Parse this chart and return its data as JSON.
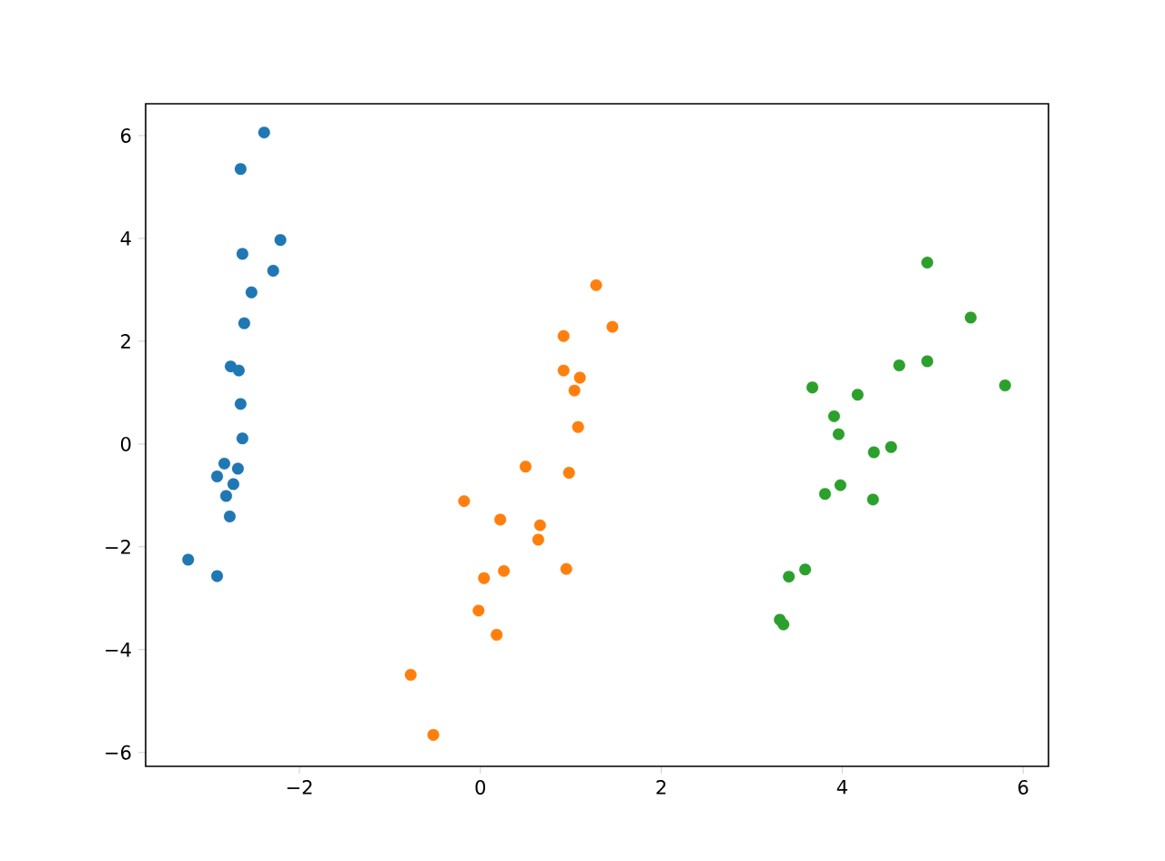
{
  "chart_data": {
    "type": "scatter",
    "xlim": [
      -3.7,
      6.28
    ],
    "ylim": [
      -6.27,
      6.62
    ],
    "xticks": [
      {
        "value": -2,
        "label": "−2"
      },
      0,
      2,
      4,
      6
    ],
    "yticks": [
      {
        "value": -6,
        "label": "−6"
      },
      {
        "value": -4,
        "label": "−4"
      },
      {
        "value": -2,
        "label": "−2"
      },
      0,
      2,
      4,
      6
    ],
    "series": [
      {
        "color": "#1f77b4",
        "x": [
          -2.39,
          -2.65,
          -2.21,
          -2.63,
          -2.29,
          -2.53,
          -2.61,
          -2.76,
          -2.67,
          -2.65,
          -2.63,
          -2.83,
          -2.68,
          -2.91,
          -2.73,
          -2.81,
          -2.77,
          -3.23,
          -2.91
        ],
        "values": [
          6.06,
          5.35,
          3.97,
          3.7,
          3.37,
          2.95,
          2.35,
          1.51,
          1.43,
          0.78,
          0.11,
          -0.38,
          -0.48,
          -0.63,
          -0.78,
          -1.01,
          -1.41,
          -2.25,
          -2.57
        ]
      },
      {
        "color": "#ff7f0e",
        "x": [
          1.28,
          1.46,
          0.92,
          0.92,
          1.1,
          1.04,
          1.08,
          0.5,
          0.98,
          -0.18,
          0.22,
          0.66,
          0.64,
          0.95,
          0.26,
          0.04,
          -0.02,
          0.18,
          -0.77,
          -0.52
        ],
        "values": [
          3.09,
          2.28,
          2.1,
          1.43,
          1.29,
          1.04,
          0.33,
          -0.44,
          -0.56,
          -1.11,
          -1.47,
          -1.58,
          -1.86,
          -2.43,
          -2.47,
          -2.61,
          -3.24,
          -3.71,
          -4.49,
          -5.66
        ]
      },
      {
        "color": "#2ca02c",
        "x": [
          4.94,
          5.42,
          4.63,
          4.94,
          5.8,
          3.67,
          4.17,
          3.91,
          3.96,
          4.54,
          4.35,
          3.98,
          3.81,
          4.34,
          3.59,
          3.41,
          3.31,
          3.35
        ],
        "values": [
          3.53,
          2.46,
          1.53,
          1.61,
          1.14,
          1.1,
          0.96,
          0.54,
          0.19,
          -0.06,
          -0.16,
          -0.8,
          -0.97,
          -1.08,
          -2.44,
          -2.58,
          -3.42,
          -3.51
        ]
      }
    ]
  }
}
